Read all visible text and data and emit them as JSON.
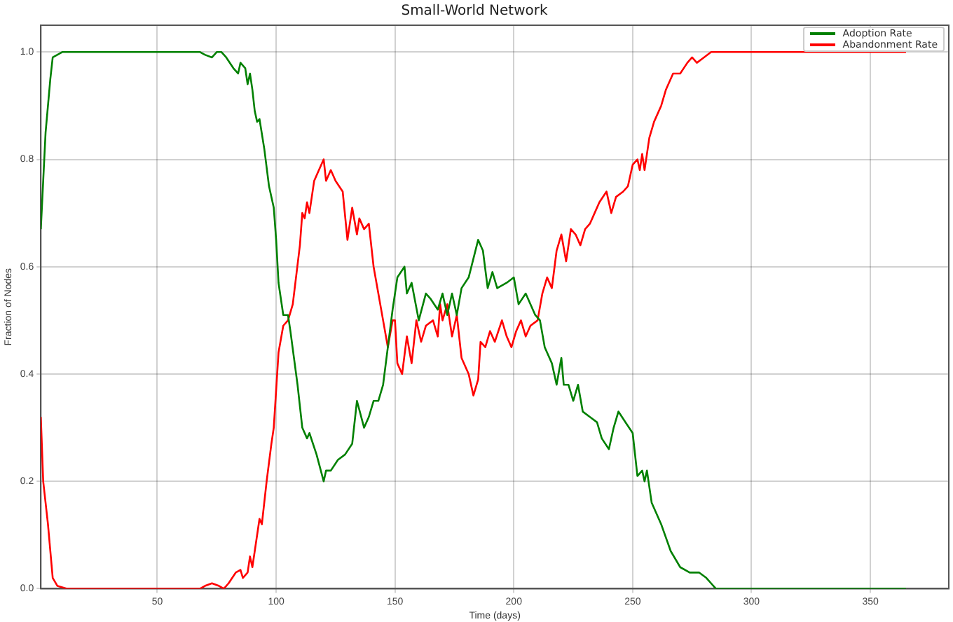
{
  "chart_data": {
    "type": "line",
    "title": "Small-World Network",
    "xlabel": "Time (days)",
    "ylabel": "Fraction of Nodes",
    "xlim": [
      1,
      383
    ],
    "xticks": [
      50,
      100,
      150,
      200,
      250,
      300,
      350
    ],
    "ylim": [
      0,
      1.05
    ],
    "yticks": [
      {
        "value": 0,
        "label": "0.0"
      },
      0.2,
      0.4,
      0.6,
      0.8,
      {
        "value": 1,
        "label": "1.0"
      }
    ],
    "grid": true,
    "legend": "top right",
    "marker": "none",
    "line_style": "solid",
    "series": [
      {
        "name": "Adoption Rate",
        "color": "#008000",
        "x": [
          1,
          3,
          5,
          6,
          10,
          68,
          70,
          73,
          75,
          77,
          79,
          82,
          84,
          85,
          87,
          88,
          89,
          90,
          91,
          92,
          93,
          95,
          97,
          99,
          100,
          101,
          103,
          105,
          106,
          109,
          111,
          113,
          114,
          117,
          120,
          121,
          123,
          126,
          129,
          132,
          134,
          137,
          139,
          141,
          143,
          145,
          147,
          149,
          151,
          154,
          155,
          157,
          160,
          163,
          165,
          168,
          170,
          172,
          174,
          176,
          178,
          181,
          185,
          187,
          189,
          191,
          193,
          197,
          200,
          202,
          205,
          209,
          211,
          213,
          216,
          218,
          220,
          221,
          223,
          225,
          227,
          229,
          232,
          235,
          237,
          240,
          242,
          244,
          247,
          250,
          252,
          254,
          255,
          256,
          258,
          262,
          266,
          270,
          274,
          278,
          281,
          285,
          365
        ],
        "values": [
          0.67,
          0.85,
          0.95,
          0.99,
          1.0,
          1.0,
          0.995,
          0.99,
          1.0,
          1.0,
          0.99,
          0.97,
          0.96,
          0.98,
          0.97,
          0.94,
          0.96,
          0.93,
          0.89,
          0.87,
          0.875,
          0.82,
          0.75,
          0.71,
          0.65,
          0.57,
          0.51,
          0.51,
          0.48,
          0.38,
          0.3,
          0.28,
          0.29,
          0.25,
          0.2,
          0.22,
          0.22,
          0.24,
          0.25,
          0.27,
          0.35,
          0.3,
          0.32,
          0.35,
          0.35,
          0.38,
          0.45,
          0.52,
          0.58,
          0.6,
          0.55,
          0.57,
          0.5,
          0.55,
          0.54,
          0.52,
          0.55,
          0.51,
          0.55,
          0.51,
          0.56,
          0.58,
          0.65,
          0.63,
          0.56,
          0.59,
          0.56,
          0.57,
          0.58,
          0.53,
          0.55,
          0.51,
          0.5,
          0.45,
          0.42,
          0.38,
          0.43,
          0.38,
          0.38,
          0.35,
          0.38,
          0.33,
          0.32,
          0.31,
          0.28,
          0.26,
          0.3,
          0.33,
          0.31,
          0.29,
          0.21,
          0.22,
          0.2,
          0.22,
          0.16,
          0.12,
          0.07,
          0.04,
          0.03,
          0.03,
          0.02,
          0.0,
          0.0
        ]
      },
      {
        "name": "Abandonment Rate",
        "color": "#ff0000",
        "x": [
          1,
          2,
          4,
          6,
          8,
          12,
          68,
          70,
          73,
          76,
          78,
          80,
          83,
          85,
          86,
          88,
          89,
          90,
          92,
          93,
          94,
          96,
          98,
          99,
          101,
          103,
          105,
          107,
          110,
          111,
          112,
          113,
          114,
          116,
          118,
          120,
          121,
          123,
          125,
          128,
          130,
          132,
          134,
          135,
          137,
          139,
          141,
          143,
          145,
          147,
          149,
          150,
          151,
          153,
          155,
          157,
          159,
          161,
          163,
          166,
          168,
          169,
          170,
          172,
          174,
          176,
          178,
          181,
          183,
          185,
          186,
          188,
          190,
          192,
          195,
          197,
          199,
          201,
          203,
          205,
          207,
          210,
          212,
          214,
          216,
          218,
          220,
          222,
          224,
          226,
          228,
          230,
          232,
          234,
          236,
          239,
          241,
          243,
          246,
          248,
          250,
          252,
          253,
          254,
          255,
          257,
          259,
          262,
          264,
          267,
          270,
          273,
          275,
          277,
          280,
          283,
          365
        ],
        "values": [
          0.32,
          0.2,
          0.12,
          0.02,
          0.005,
          0.0,
          0.0,
          0.005,
          0.01,
          0.005,
          0.0,
          0.01,
          0.03,
          0.035,
          0.02,
          0.03,
          0.06,
          0.04,
          0.1,
          0.13,
          0.12,
          0.2,
          0.27,
          0.3,
          0.44,
          0.49,
          0.5,
          0.53,
          0.64,
          0.7,
          0.69,
          0.72,
          0.7,
          0.76,
          0.78,
          0.8,
          0.76,
          0.78,
          0.76,
          0.74,
          0.65,
          0.71,
          0.66,
          0.69,
          0.67,
          0.68,
          0.6,
          0.55,
          0.5,
          0.45,
          0.5,
          0.5,
          0.42,
          0.4,
          0.47,
          0.42,
          0.5,
          0.46,
          0.49,
          0.5,
          0.47,
          0.53,
          0.5,
          0.53,
          0.47,
          0.51,
          0.43,
          0.4,
          0.36,
          0.39,
          0.46,
          0.45,
          0.48,
          0.46,
          0.5,
          0.47,
          0.45,
          0.48,
          0.5,
          0.47,
          0.49,
          0.5,
          0.55,
          0.58,
          0.56,
          0.63,
          0.66,
          0.61,
          0.67,
          0.66,
          0.64,
          0.67,
          0.68,
          0.7,
          0.72,
          0.74,
          0.7,
          0.73,
          0.74,
          0.75,
          0.79,
          0.8,
          0.78,
          0.81,
          0.78,
          0.84,
          0.87,
          0.9,
          0.93,
          0.96,
          0.96,
          0.98,
          0.99,
          0.98,
          0.99,
          1.0,
          1.0
        ]
      }
    ]
  }
}
